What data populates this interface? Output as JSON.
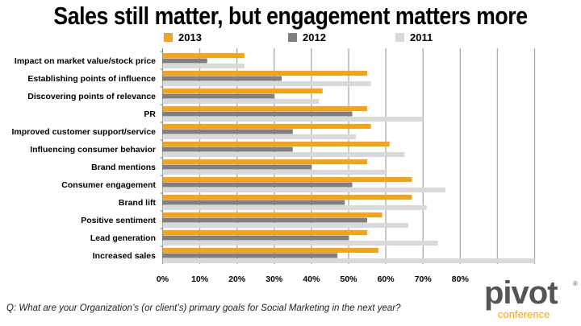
{
  "chart_data": {
    "type": "bar",
    "orientation": "horizontal",
    "title": "Sales still matter, but engagement matters more",
    "categories": [
      "Impact on market value/stock price",
      "Establishing points of influence",
      "Discovering points of relevance",
      "PR",
      "Improved customer support/service",
      "Influencing consumer behavior",
      "Brand mentions",
      "Consumer engagement",
      "Brand lift",
      "Positive sentiment",
      "Lead generation",
      "Increased sales"
    ],
    "series": [
      {
        "name": "2013",
        "color": "#f6a31b",
        "values": [
          22,
          55,
          43,
          55,
          56,
          61,
          55,
          67,
          67,
          59,
          55,
          58
        ]
      },
      {
        "name": "2012",
        "color": "#808080",
        "values": [
          12,
          32,
          30,
          51,
          35,
          35,
          40,
          51,
          49,
          55,
          50,
          47
        ]
      },
      {
        "name": "2011",
        "color": "#d9d9d9",
        "values": [
          22,
          56,
          42,
          70,
          52,
          65,
          60,
          76,
          71,
          66,
          74,
          100
        ]
      }
    ],
    "xlim": [
      0,
      100
    ],
    "xticks": [
      "0%",
      "10%",
      "20%",
      "30%",
      "40%",
      "50%",
      "60%",
      "70%",
      "80%"
    ],
    "grid": true,
    "legend_position": "top"
  },
  "footnote": "Q: What are your Organization’s (or client’s) primary goals for Social Marketing in the next year?",
  "logo": {
    "word": "pivot",
    "sub": "conference",
    "reg": "®"
  }
}
